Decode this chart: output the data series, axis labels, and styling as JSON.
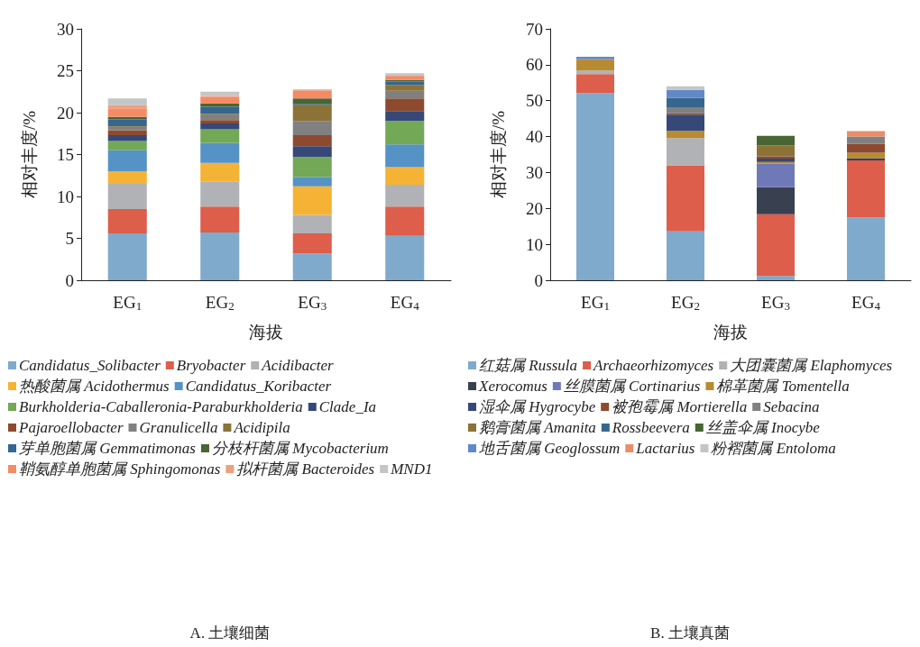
{
  "chart_data": [
    {
      "type": "bar",
      "stacked": true,
      "title": "A. 土壤细菌",
      "xlabel": "海拔",
      "ylabel": "相对丰度/%",
      "categories": [
        "EG$_{1}$",
        "EG$_{2}$",
        "EG$_{3}$",
        "EG$_{4}$"
      ],
      "ylim": [
        0,
        30
      ],
      "yticks": [
        0,
        5,
        10,
        15,
        20,
        25,
        30
      ],
      "grid": false,
      "legend": "bottom",
      "series": [
        {
          "name": "Candidatus_Solibacter",
          "color": "#7faacb",
          "values": [
            5.6,
            5.7,
            3.2,
            5.3
          ]
        },
        {
          "name": "Bryobacter",
          "color": "#dc5e4b",
          "values": [
            2.9,
            3.1,
            2.4,
            3.5
          ]
        },
        {
          "name": "Acidibacter",
          "color": "#b1b2b5",
          "values": [
            3.0,
            3.0,
            2.2,
            2.6
          ]
        },
        {
          "name": "热酸菌属 Acidothermus",
          "color": "#f5b335",
          "values": [
            1.5,
            2.2,
            3.4,
            2.1
          ]
        },
        {
          "name": "Candidatus_Koribacter",
          "color": "#5592c6",
          "values": [
            2.5,
            2.4,
            1.1,
            2.7
          ]
        },
        {
          "name": "Burkholderia-Caballeronia-Paraburkholderia",
          "color": "#72a856",
          "values": [
            1.1,
            1.6,
            2.4,
            2.8
          ]
        },
        {
          "name": "Clade_Ia",
          "color": "#354878",
          "values": [
            0.7,
            0.7,
            1.3,
            1.2
          ]
        },
        {
          "name": "Pajaroellobacter",
          "color": "#8e4a2e",
          "values": [
            0.6,
            0.4,
            1.3,
            1.5
          ]
        },
        {
          "name": "Granulicella",
          "color": "#808080",
          "values": [
            0.4,
            0.7,
            1.7,
            0.9
          ]
        },
        {
          "name": "Acidipila",
          "color": "#8c7236",
          "values": [
            0.1,
            0.1,
            1.9,
            0.7
          ]
        },
        {
          "name": "芽单胞菌属 Gemmatimonas",
          "color": "#356690",
          "values": [
            0.8,
            0.8,
            0.1,
            0.4
          ]
        },
        {
          "name": "分枝杆菌属 Mycobacterium",
          "color": "#486534",
          "values": [
            0.3,
            0.4,
            0.7,
            0.2
          ]
        },
        {
          "name": "鞘氨醇单胞菌属 Sphingomonas",
          "color": "#f48b65",
          "values": [
            1.0,
            0.8,
            0.9,
            0.4
          ]
        },
        {
          "name": "拟杆菌属 Bacteroides",
          "color": "#eca07e",
          "values": [
            0.4,
            0.1,
            0.1,
            0.1
          ]
        },
        {
          "name": "MND1",
          "color": "#c4c5c7",
          "values": [
            0.8,
            0.5,
            0.1,
            0.3
          ]
        }
      ]
    },
    {
      "type": "bar",
      "stacked": true,
      "title": "B. 土壤真菌",
      "xlabel": "海拔",
      "ylabel": "相对丰度/%",
      "categories": [
        "EG$_{1}$",
        "EG$_{2}$",
        "EG$_{3}$",
        "EG$_{4}$"
      ],
      "ylim": [
        0,
        70
      ],
      "yticks": [
        0,
        10,
        20,
        30,
        40,
        50,
        60,
        70
      ],
      "grid": false,
      "legend": "bottom",
      "series": [
        {
          "name": "红菇属 Russula",
          "color": "#7faacb",
          "values": [
            52.1,
            13.6,
            1.2,
            17.5
          ]
        },
        {
          "name": "Archaeorhizomyces",
          "color": "#dc5e4b",
          "values": [
            5.3,
            18.4,
            17.2,
            15.9
          ]
        },
        {
          "name": "大团囊菌属 Elaphomyces",
          "color": "#b1b2b5",
          "values": [
            1.0,
            7.6,
            null,
            null
          ]
        },
        {
          "name": "Xerocomus",
          "color": "#394150",
          "values": [
            null,
            null,
            7.5,
            0.6
          ]
        },
        {
          "name": "丝膜菌属 Cortinarius",
          "color": "#7079b8",
          "values": [
            null,
            null,
            6.5,
            null
          ]
        },
        {
          "name": "棉革菌属 Tomentella",
          "color": "#b68b32",
          "values": [
            3.0,
            2.0,
            0.5,
            1.5
          ]
        },
        {
          "name": "湿伞属 Hygrocybe",
          "color": "#354878",
          "values": [
            null,
            4.5,
            1.0,
            null
          ]
        },
        {
          "name": "被孢霉属 Mortierella",
          "color": "#8e4a2e",
          "values": [
            0.2,
            0.4,
            0.6,
            2.5
          ]
        },
        {
          "name": "Sebacina",
          "color": "#808080",
          "values": [
            null,
            1.7,
            null,
            2.0
          ]
        },
        {
          "name": "鹅膏菌属 Amanita",
          "color": "#8c7236",
          "values": [
            null,
            null,
            3.0,
            null
          ]
        },
        {
          "name": "Rossbeevera",
          "color": "#356690",
          "values": [
            null,
            2.6,
            null,
            null
          ]
        },
        {
          "name": "丝盖伞属 Inocybe",
          "color": "#486534",
          "values": [
            null,
            null,
            2.7,
            null
          ]
        },
        {
          "name": "地舌菌属 Geoglossum",
          "color": "#6189c8",
          "values": [
            0.6,
            2.2,
            null,
            null
          ]
        },
        {
          "name": "Lactarius",
          "color": "#ea8d68",
          "values": [
            null,
            null,
            null,
            1.5
          ]
        },
        {
          "name": "粉褶菌属 Entoloma",
          "color": "#c4c5c7",
          "values": [
            null,
            1.0,
            null,
            null
          ]
        }
      ]
    }
  ]
}
